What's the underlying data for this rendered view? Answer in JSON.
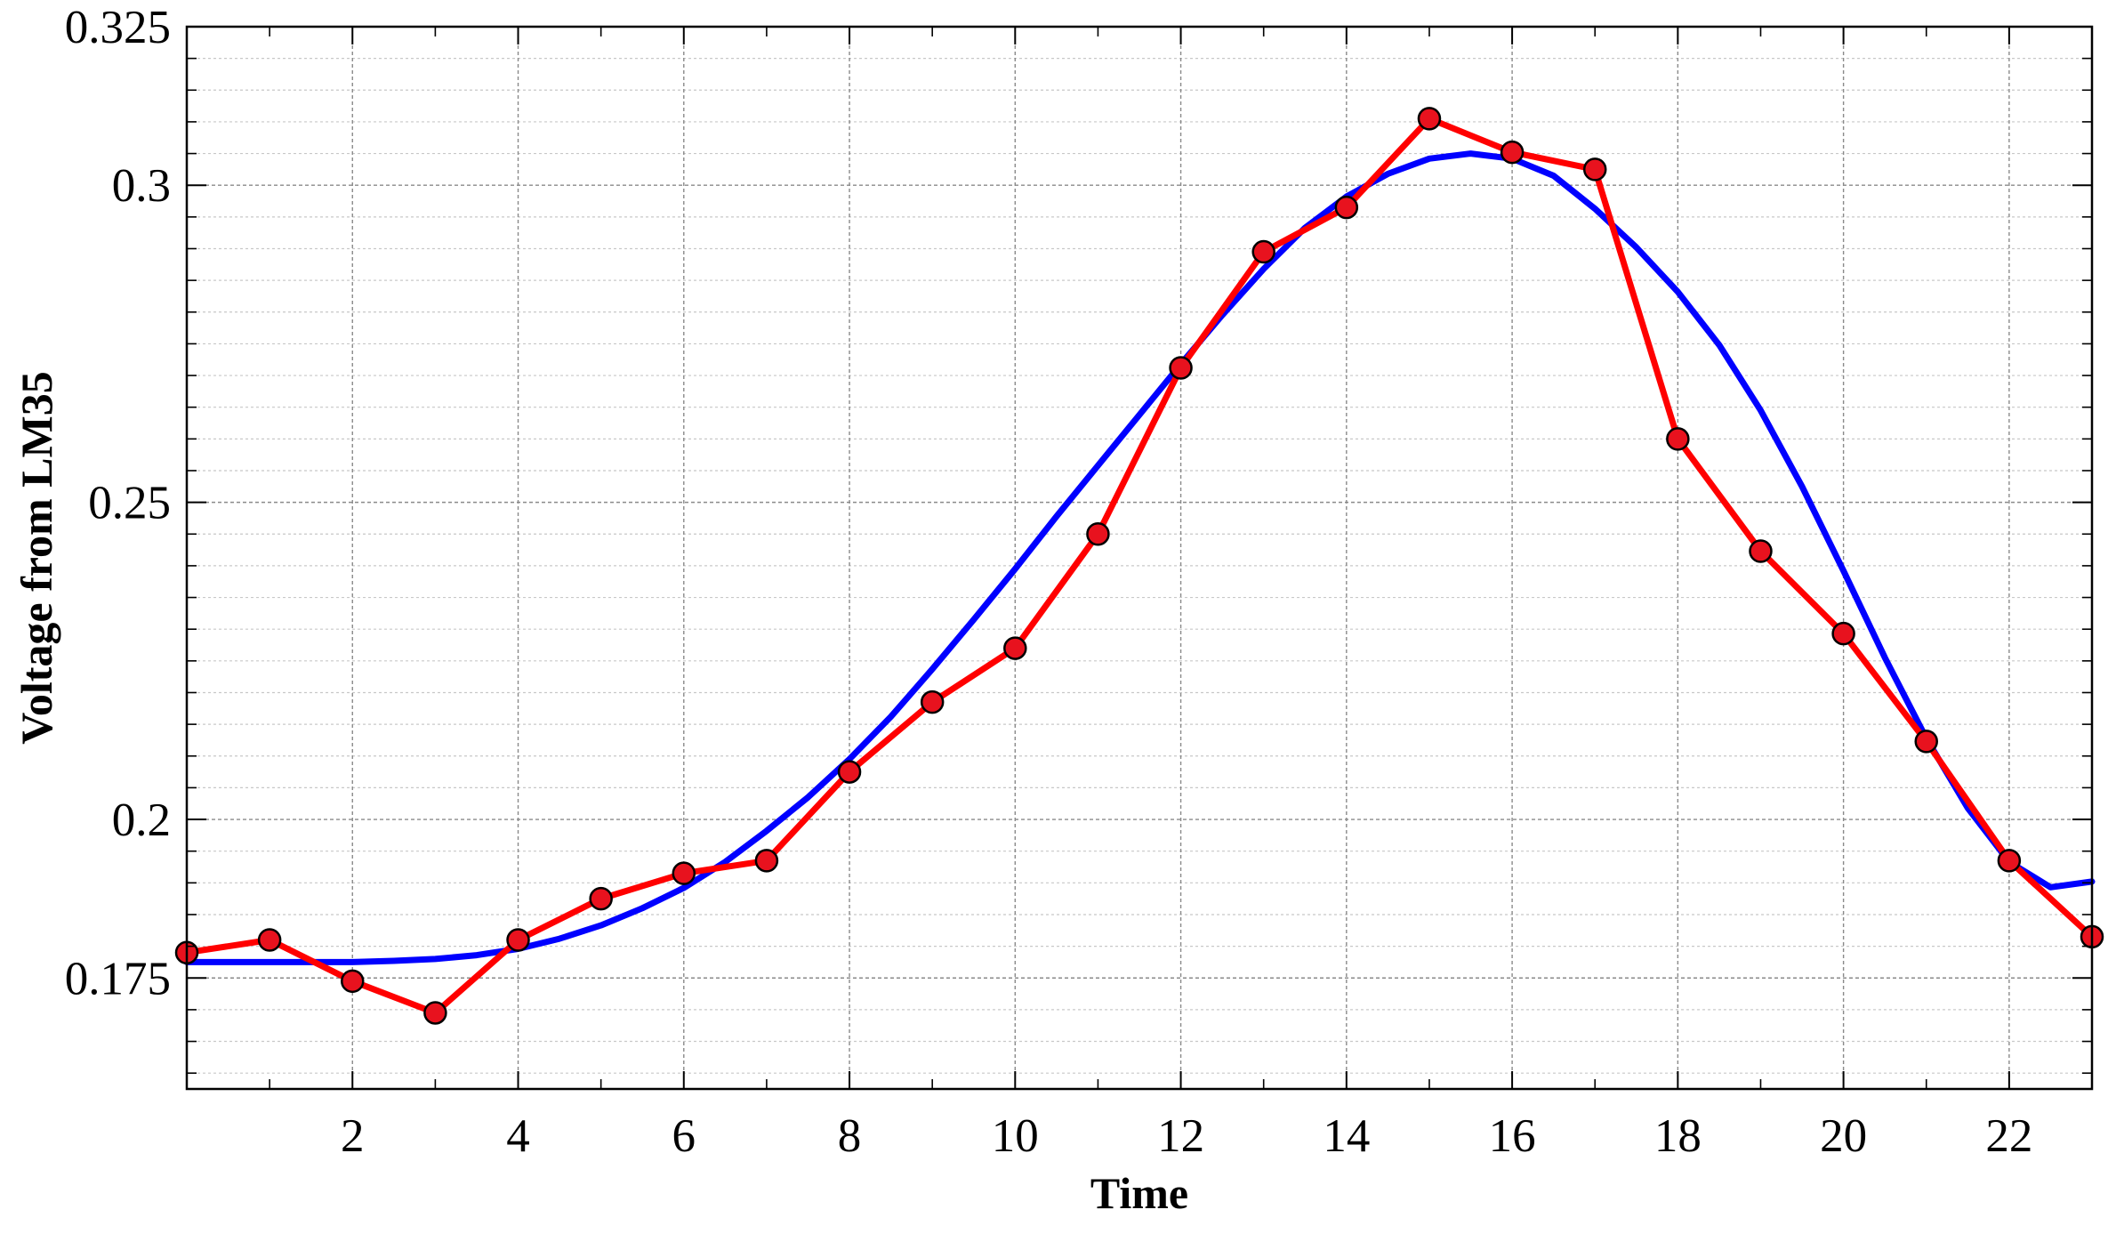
{
  "chart_data": {
    "type": "line",
    "title": "",
    "xlabel": "Time",
    "ylabel": "Voltage from LM35",
    "xlim": [
      0,
      23
    ],
    "ylim": [
      0.1575,
      0.325
    ],
    "x_ticks": [
      2,
      4,
      6,
      8,
      10,
      12,
      14,
      16,
      18,
      20,
      22
    ],
    "y_ticks": [
      0.175,
      0.2,
      0.25,
      0.3,
      0.325
    ],
    "y_tick_labels": [
      "0.175",
      "0.2",
      "0.25",
      "0.3",
      "0.325"
    ],
    "x_minor_step": 1,
    "y_minor_step": 0.005,
    "grid": true,
    "legend": "none",
    "series": [
      {
        "color": "#ff0000",
        "marker_color": "#e8121e",
        "markers": true,
        "x": [
          0,
          1,
          2,
          3,
          4,
          5,
          6,
          7,
          8,
          9,
          10,
          11,
          12,
          13,
          14,
          15,
          16,
          17,
          18,
          19,
          20,
          21,
          22,
          23
        ],
        "y": [
          0.179,
          0.181,
          0.1745,
          0.1695,
          0.181,
          0.1875,
          0.1915,
          0.1935,
          0.2075,
          0.2185,
          0.227,
          0.245,
          0.2712,
          0.2895,
          0.2965,
          0.3105,
          0.3052,
          0.3025,
          0.26,
          0.2423,
          0.2293,
          0.2123,
          0.1935,
          0.1815
        ]
      },
      {
        "color": "#0000ff",
        "markers": false,
        "x": [
          0,
          0.5,
          1,
          1.5,
          2,
          2.5,
          3,
          3.5,
          4,
          4.5,
          5,
          5.5,
          6,
          6.5,
          7,
          7.5,
          8,
          8.5,
          9,
          9.5,
          10,
          10.5,
          11,
          11.5,
          12,
          12.5,
          13,
          13.5,
          14,
          14.5,
          15,
          15.5,
          16,
          16.5,
          17,
          17.5,
          18,
          18.5,
          19,
          19.5,
          20,
          20.5,
          21,
          21.5,
          22,
          22.5,
          23
        ],
        "y": [
          0.1775,
          0.1775,
          0.1775,
          0.1775,
          0.1775,
          0.1777,
          0.178,
          0.1786,
          0.1796,
          0.1812,
          0.1833,
          0.186,
          0.1892,
          0.1933,
          0.1982,
          0.2035,
          0.2095,
          0.2162,
          0.2237,
          0.2315,
          0.2395,
          0.2478,
          0.2558,
          0.2638,
          0.2718,
          0.2795,
          0.2868,
          0.2933,
          0.2982,
          0.3018,
          0.3042,
          0.305,
          0.3042,
          0.3015,
          0.2963,
          0.2902,
          0.2832,
          0.2748,
          0.2645,
          0.2525,
          0.2392,
          0.2255,
          0.2128,
          0.2018,
          0.1933,
          0.1893,
          0.1902
        ]
      }
    ]
  }
}
